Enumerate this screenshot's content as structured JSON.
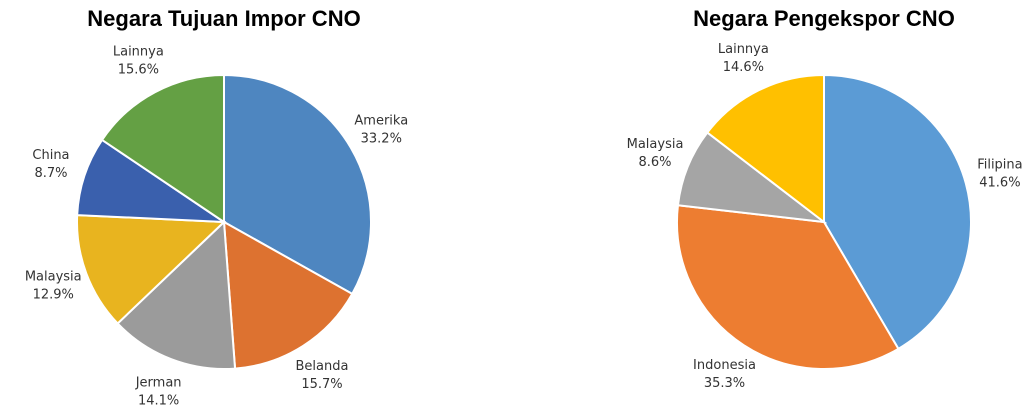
{
  "chart_data": [
    {
      "type": "pie",
      "title": "Negara Tujuan Impor CNO",
      "categories": [
        "Amerika",
        "Belanda",
        "Jerman",
        "Malaysia",
        "China",
        "Lainnya"
      ],
      "values": [
        33.2,
        15.7,
        14.1,
        12.9,
        8.7,
        15.6
      ],
      "value_labels": [
        "33.2%",
        "15.7%",
        "14.1%",
        "12.9%",
        "8.7%",
        "15.6%"
      ],
      "colors": [
        "#4e86c0",
        "#dd7230",
        "#9b9b9b",
        "#e8b41f",
        "#3a60ad",
        "#64a044"
      ]
    },
    {
      "type": "pie",
      "title": "Negara Pengekspor CNO",
      "categories": [
        "Filipina",
        "Indonesia",
        "Malaysia",
        "Lainnya"
      ],
      "values": [
        41.6,
        35.3,
        8.6,
        14.6
      ],
      "value_labels": [
        "41.6%",
        "35.3%",
        "8.6%",
        "14.6%"
      ],
      "colors": [
        "#5b9bd5",
        "#ed7d31",
        "#a5a5a5",
        "#ffc000"
      ]
    }
  ]
}
